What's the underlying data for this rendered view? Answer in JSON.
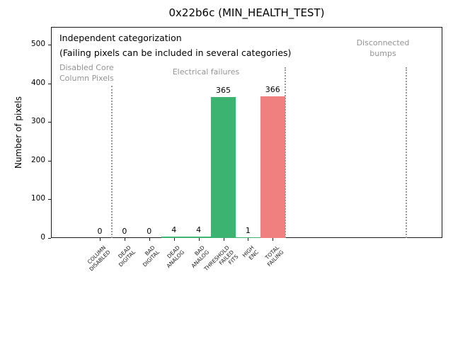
{
  "window": {
    "title": "0x22b6c (MIN_HEALTH_TEST)"
  },
  "colors": {
    "bar_green": "#3CB371",
    "bar_red": "#F08080",
    "annotation_gray": "#949494",
    "separator_gray": "#9a9a9a",
    "axis_black": "#1a1a1a"
  },
  "chart_data": {
    "type": "bar",
    "title": "0x22b6c (MIN_HEALTH_TEST)",
    "xlabel": "",
    "ylabel": "Number of pixels",
    "ylim": [
      0,
      548
    ],
    "yticks": [
      0,
      100,
      200,
      300,
      400,
      500
    ],
    "grid": false,
    "legend": "none",
    "categories": [
      "COLUMN\nDISABLED",
      "DEAD\nDIGITAL",
      "BAD\nDIGITAL",
      "DEAD\nANALOG",
      "BAD\nANALOG",
      "THRESHOLD\nFAILED\nFITS",
      "HIGH\nENC",
      "TOTAL\nFAILING"
    ],
    "values": [
      0,
      0,
      0,
      4,
      4,
      365,
      1,
      366
    ],
    "value_labels": [
      "0",
      "0",
      "0",
      "4",
      "4",
      "365",
      "1",
      "366"
    ],
    "bar_colors": [
      "#3CB371",
      "#3CB371",
      "#3CB371",
      "#3CB371",
      "#3CB371",
      "#3CB371",
      "#3CB371",
      "#F08080"
    ],
    "annotations": [
      {
        "id": "independent-categorization",
        "text": "Independent categorization",
        "color": "black"
      },
      {
        "id": "categorization-note",
        "text": "(Failing pixels can be included in several categories)",
        "color": "black"
      },
      {
        "id": "disabled-core-column-pixels",
        "text": "Disabled Core\nColumn Pixels",
        "color": "gray"
      },
      {
        "id": "electrical-failures",
        "text": "Electrical failures",
        "color": "gray"
      },
      {
        "id": "disconnected-bumps",
        "text": "Disconnected\nbumps",
        "color": "gray"
      }
    ],
    "separators": [
      {
        "x_units": 0.5,
        "top_value": 394
      },
      {
        "x_units": 7.5,
        "top_value": 441
      },
      {
        "x_units": 12.4,
        "top_value": 441
      }
    ]
  }
}
